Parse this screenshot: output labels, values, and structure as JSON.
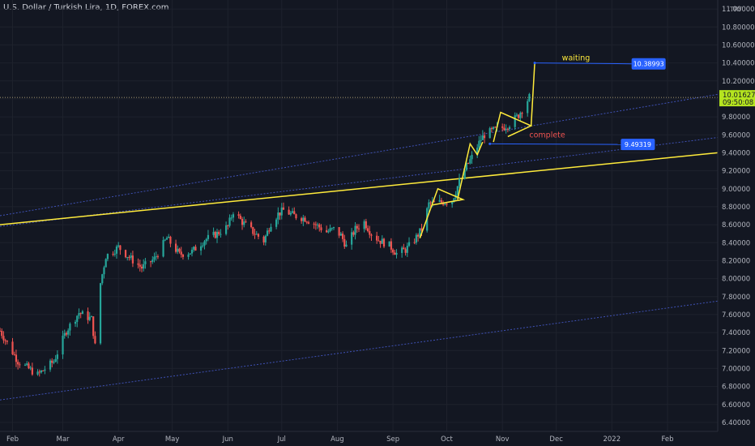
{
  "header": {
    "title": "U.S. Dollar / Turkish Lira, 1D, FOREX.com",
    "currency": "TRY"
  },
  "colors": {
    "background": "#131722",
    "up": "#26a69a",
    "down": "#ef5350",
    "trend": "#ffeb3b",
    "channel": "#3f51b5",
    "label_box": "#2962ff",
    "current_price": "#b5e41f"
  },
  "chart_data": {
    "type": "candlestick",
    "title": "U.S. Dollar / Turkish Lira, 1D, FOREX.com",
    "ylim": [
      6.3,
      11.1
    ],
    "x_domain": [
      "2021-01-25",
      "2022-03-01"
    ],
    "y_ticks": [
      "11.00000",
      "10.80000",
      "10.60000",
      "10.40000",
      "10.20000",
      "10.00000",
      "9.80000",
      "9.60000",
      "9.40000",
      "9.20000",
      "9.00000",
      "8.80000",
      "8.60000",
      "8.40000",
      "8.20000",
      "8.00000",
      "7.80000",
      "7.60000",
      "7.40000",
      "7.20000",
      "7.00000",
      "6.80000",
      "6.60000",
      "6.40000"
    ],
    "x_ticks": [
      {
        "label": "Feb",
        "date": "2021-02-01"
      },
      {
        "label": "Mar",
        "date": "2021-03-01"
      },
      {
        "label": "Apr",
        "date": "2021-04-01"
      },
      {
        "label": "May",
        "date": "2021-05-01"
      },
      {
        "label": "Jun",
        "date": "2021-06-01"
      },
      {
        "label": "Jul",
        "date": "2021-07-01"
      },
      {
        "label": "Aug",
        "date": "2021-08-01"
      },
      {
        "label": "Sep",
        "date": "2021-09-01"
      },
      {
        "label": "Oct",
        "date": "2021-10-01"
      },
      {
        "label": "Nov",
        "date": "2021-11-01"
      },
      {
        "label": "Dec",
        "date": "2021-12-01"
      },
      {
        "label": "2022",
        "date": "2022-01-01"
      },
      {
        "label": "Feb",
        "date": "2022-02-01"
      }
    ],
    "price_path": [
      [
        "2021-01-25",
        7.42
      ],
      [
        "2021-02-04",
        7.08
      ],
      [
        "2021-02-15",
        6.93
      ],
      [
        "2021-02-24",
        7.08
      ],
      [
        "2021-03-03",
        7.42
      ],
      [
        "2021-03-10",
        7.62
      ],
      [
        "2021-03-17",
        7.55
      ],
      [
        "2021-03-19",
        7.25
      ],
      [
        "2021-03-22",
        7.95
      ],
      [
        "2021-03-25",
        8.25
      ],
      [
        "2021-04-01",
        8.35
      ],
      [
        "2021-04-08",
        8.22
      ],
      [
        "2021-04-14",
        8.12
      ],
      [
        "2021-04-21",
        8.22
      ],
      [
        "2021-04-28",
        8.45
      ],
      [
        "2021-05-05",
        8.27
      ],
      [
        "2021-05-12",
        8.3
      ],
      [
        "2021-05-19",
        8.43
      ],
      [
        "2021-05-26",
        8.5
      ],
      [
        "2021-06-01",
        8.58
      ],
      [
        "2021-06-04",
        8.75
      ],
      [
        "2021-06-09",
        8.63
      ],
      [
        "2021-06-15",
        8.52
      ],
      [
        "2021-06-21",
        8.42
      ],
      [
        "2021-06-25",
        8.62
      ],
      [
        "2021-06-29",
        8.72
      ],
      [
        "2021-07-02",
        8.76
      ],
      [
        "2021-07-08",
        8.7
      ],
      [
        "2021-07-14",
        8.67
      ],
      [
        "2021-07-20",
        8.6
      ],
      [
        "2021-07-26",
        8.52
      ],
      [
        "2021-07-30",
        8.55
      ],
      [
        "2021-08-03",
        8.48
      ],
      [
        "2021-08-06",
        8.36
      ],
      [
        "2021-08-11",
        8.55
      ],
      [
        "2021-08-16",
        8.63
      ],
      [
        "2021-08-20",
        8.5
      ],
      [
        "2021-08-24",
        8.43
      ],
      [
        "2021-08-30",
        8.37
      ],
      [
        "2021-09-03",
        8.28
      ],
      [
        "2021-09-08",
        8.32
      ],
      [
        "2021-09-13",
        8.43
      ],
      [
        "2021-09-17",
        8.55
      ],
      [
        "2021-09-21",
        8.83
      ],
      [
        "2021-09-28",
        8.85
      ],
      [
        "2021-10-04",
        8.87
      ],
      [
        "2021-10-08",
        9.08
      ],
      [
        "2021-10-12",
        9.25
      ],
      [
        "2021-10-15",
        9.35
      ],
      [
        "2021-10-20",
        9.55
      ],
      [
        "2021-10-22",
        9.6
      ],
      [
        "2021-10-27",
        9.65
      ],
      [
        "2021-11-01",
        9.68
      ],
      [
        "2021-11-05",
        9.72
      ],
      [
        "2021-11-10",
        9.82
      ],
      [
        "2021-11-16",
        10.02
      ]
    ],
    "channel_lines": [
      {
        "from": [
          "2021-01-25",
          8.7
        ],
        "to": [
          "2022-03-01",
          10.05
        ]
      },
      {
        "from": [
          "2021-01-25",
          8.58
        ],
        "to": [
          "2022-03-01",
          9.57
        ]
      },
      {
        "from": [
          "2021-01-25",
          6.65
        ],
        "to": [
          "2022-03-01",
          7.75
        ]
      }
    ],
    "trend_lines": [
      {
        "from": [
          "2021-01-25",
          8.6
        ],
        "to": [
          "2022-03-01",
          9.4
        ]
      }
    ],
    "patterns": [
      {
        "points": [
          [
            "2021-09-16",
            8.45
          ],
          [
            "2021-09-26",
            9.0
          ],
          [
            "2021-10-10",
            8.88
          ],
          [
            "2021-09-23",
            8.82
          ]
        ]
      },
      {
        "points": [
          [
            "2021-10-07",
            8.88
          ],
          [
            "2021-10-14",
            9.5
          ],
          [
            "2021-10-18",
            9.38
          ],
          [
            "2021-10-21",
            9.52
          ]
        ]
      },
      {
        "points": [
          [
            "2021-10-27",
            9.52
          ],
          [
            "2021-10-31",
            9.85
          ],
          [
            "2021-11-17",
            9.7
          ],
          [
            "2021-11-04",
            9.58
          ]
        ]
      },
      {
        "points": [
          [
            "2021-11-17",
            9.7
          ],
          [
            "2021-11-19",
            10.4
          ]
        ]
      }
    ],
    "horizontal_rays": [
      {
        "from": [
          "2021-11-19",
          10.4
        ],
        "to": [
          "2022-01-12",
          10.38993
        ],
        "label": "10.38993"
      },
      {
        "from": [
          "2021-10-25",
          9.5
        ],
        "to": [
          "2022-01-06",
          9.49319
        ],
        "label": "9.49319"
      }
    ],
    "annotations": [
      {
        "text": "waiting",
        "at": [
          "2021-12-12",
          10.43
        ],
        "color": "#ffeb3b"
      },
      {
        "text": "complete",
        "at": [
          "2021-11-26",
          9.57
        ],
        "color": "#ef5350"
      }
    ],
    "current_price": {
      "value": 10.01627,
      "value_label": "10.01627",
      "countdown": "09:50:08"
    }
  }
}
